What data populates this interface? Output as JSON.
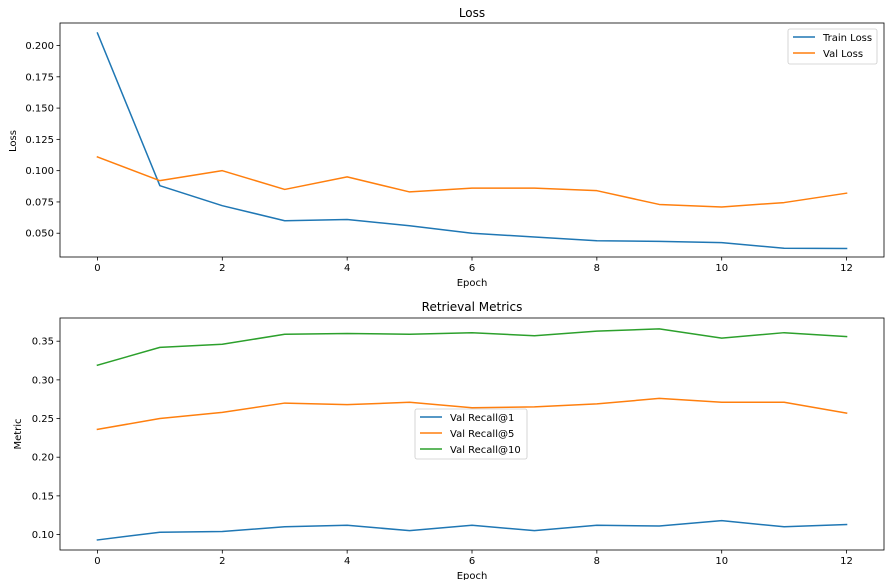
{
  "colors": {
    "c0": "#1f77b4",
    "c1": "#ff7f0e",
    "c2": "#2ca02c"
  },
  "chart_data": [
    {
      "type": "line",
      "title": "Loss",
      "xlabel": "Epoch",
      "ylabel": "Loss",
      "x": [
        0,
        1,
        2,
        3,
        4,
        5,
        6,
        7,
        8,
        9,
        10,
        11,
        12
      ],
      "xticks": [
        "0",
        "2",
        "4",
        "6",
        "8",
        "10",
        "12"
      ],
      "yticks": [
        "0.050",
        "0.075",
        "0.100",
        "0.125",
        "0.150",
        "0.175",
        "0.200"
      ],
      "xlim": [
        -0.6,
        12.6
      ],
      "ylim": [
        0.031,
        0.218
      ],
      "legend": "top-right",
      "grid": false,
      "series": [
        {
          "name": "Train Loss",
          "color": "#1f77b4",
          "values": [
            0.21,
            0.088,
            0.072,
            0.06,
            0.061,
            0.056,
            0.05,
            0.047,
            0.044,
            0.0435,
            0.0425,
            0.038,
            0.0378
          ]
        },
        {
          "name": "Val Loss",
          "color": "#ff7f0e",
          "values": [
            0.111,
            0.092,
            0.1,
            0.085,
            0.095,
            0.083,
            0.086,
            0.086,
            0.084,
            0.073,
            0.071,
            0.0745,
            0.082
          ]
        }
      ]
    },
    {
      "type": "line",
      "title": "Retrieval Metrics",
      "xlabel": "Epoch",
      "ylabel": "Metric",
      "x": [
        0,
        1,
        2,
        3,
        4,
        5,
        6,
        7,
        8,
        9,
        10,
        11,
        12
      ],
      "xticks": [
        "0",
        "2",
        "4",
        "6",
        "8",
        "10",
        "12"
      ],
      "yticks": [
        "0.10",
        "0.15",
        "0.20",
        "0.25",
        "0.30",
        "0.35"
      ],
      "xlim": [
        -0.6,
        12.6
      ],
      "ylim": [
        0.08,
        0.38
      ],
      "legend": "center",
      "grid": false,
      "series": [
        {
          "name": "Val Recall@1",
          "color": "#1f77b4",
          "values": [
            0.093,
            0.103,
            0.104,
            0.11,
            0.112,
            0.105,
            0.112,
            0.105,
            0.112,
            0.111,
            0.118,
            0.11,
            0.113
          ]
        },
        {
          "name": "Val Recall@5",
          "color": "#ff7f0e",
          "values": [
            0.236,
            0.25,
            0.258,
            0.27,
            0.268,
            0.271,
            0.264,
            0.265,
            0.269,
            0.276,
            0.271,
            0.271,
            0.257
          ]
        },
        {
          "name": "Val Recall@10",
          "color": "#2ca02c",
          "values": [
            0.319,
            0.342,
            0.346,
            0.359,
            0.36,
            0.359,
            0.361,
            0.357,
            0.363,
            0.366,
            0.354,
            0.361,
            0.356
          ]
        }
      ]
    }
  ]
}
